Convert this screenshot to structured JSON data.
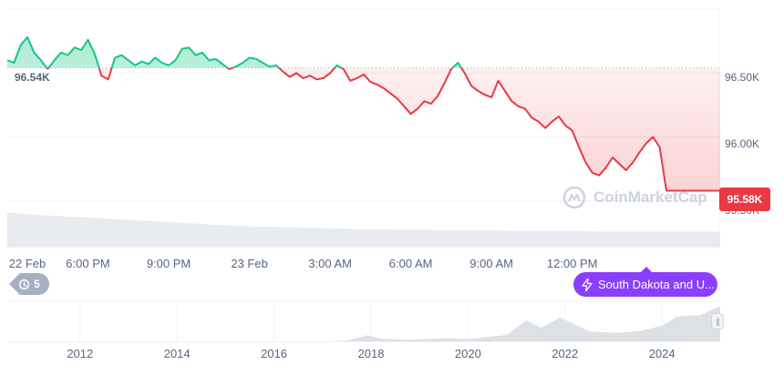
{
  "chart_data": [
    {
      "type": "area",
      "baseline": 96.54,
      "baseline_label": "96.54K",
      "last_value_label": "95.58K",
      "y_ticks": [
        {
          "value": 96.5,
          "label": "96.50K"
        },
        {
          "value": 96.0,
          "label": "96.00K"
        },
        {
          "value": 95.5,
          "label": "95.50K"
        }
      ],
      "ylim": [
        95.42,
        97.0
      ],
      "xlim": [
        0,
        26.5
      ],
      "x_ticks": [
        {
          "value": 0,
          "label": "22 Feb"
        },
        {
          "value": 3,
          "label": "6:00 PM"
        },
        {
          "value": 6,
          "label": "9:00 PM"
        },
        {
          "value": 9,
          "label": "23 Feb"
        },
        {
          "value": 12,
          "label": "3:00 AM"
        },
        {
          "value": 15,
          "label": "6:00 AM"
        },
        {
          "value": 18,
          "label": "9:00 AM"
        },
        {
          "value": 21,
          "label": "12:00 PM"
        }
      ],
      "up_color": "#16c784",
      "down_color": "#ea3943",
      "series": [
        {
          "x": [
            0,
            0.25,
            0.5,
            0.75,
            1.0,
            1.25,
            1.5,
            1.75,
            2.0,
            2.25,
            2.5,
            2.75,
            3.0,
            3.25,
            3.5,
            3.75,
            4.0,
            4.25,
            4.5,
            4.75,
            5.0,
            5.25,
            5.5,
            5.75,
            6.0,
            6.25,
            6.5,
            6.75,
            7.0,
            7.25,
            7.5,
            7.75,
            8.0,
            8.25,
            8.5,
            8.75,
            9.0,
            9.25,
            9.5,
            9.75,
            10.0,
            10.25,
            10.5,
            10.75,
            11.0,
            11.25,
            11.5,
            11.75,
            12.0,
            12.25,
            12.5,
            12.75,
            13.0,
            13.25,
            13.5,
            13.75,
            14.0,
            14.25,
            14.5,
            14.75,
            15.0,
            15.25,
            15.5,
            15.75,
            16.0,
            16.25,
            16.5,
            16.75,
            17.0,
            17.25,
            17.5,
            17.75,
            18.0,
            18.25,
            18.5,
            18.75,
            19.0,
            19.25,
            19.5,
            19.75,
            20.0,
            20.25,
            20.5,
            20.75,
            21.0,
            21.25,
            21.5,
            21.75,
            22.0,
            22.25,
            22.5,
            22.75,
            23.0,
            23.25,
            23.5,
            23.75,
            24.0,
            24.25,
            24.5,
            24.75,
            25.0,
            25.25,
            25.5,
            25.75,
            26.0,
            26.25,
            26.5
          ],
          "values": [
            96.6,
            96.58,
            96.72,
            96.78,
            96.66,
            96.6,
            96.53,
            96.6,
            96.66,
            96.64,
            96.7,
            96.68,
            96.76,
            96.65,
            96.48,
            96.45,
            96.62,
            96.64,
            96.6,
            96.56,
            96.59,
            96.57,
            96.62,
            96.58,
            96.56,
            96.6,
            96.69,
            96.7,
            96.64,
            96.66,
            96.6,
            96.61,
            96.57,
            96.53,
            96.55,
            96.58,
            96.62,
            96.61,
            96.58,
            96.55,
            96.56,
            96.51,
            96.47,
            96.5,
            96.46,
            96.48,
            96.45,
            96.46,
            96.5,
            96.56,
            96.53,
            96.44,
            96.46,
            96.49,
            96.43,
            96.41,
            96.38,
            96.34,
            96.3,
            96.24,
            96.18,
            96.22,
            96.28,
            96.26,
            96.32,
            96.42,
            96.53,
            96.58,
            96.5,
            96.4,
            96.36,
            96.33,
            96.31,
            96.44,
            96.36,
            96.28,
            96.24,
            96.22,
            96.15,
            96.12,
            96.07,
            96.12,
            96.16,
            96.09,
            96.05,
            95.92,
            95.8,
            95.72,
            95.7,
            95.76,
            95.84,
            95.79,
            95.74,
            95.8,
            95.88,
            95.95,
            96.0,
            95.92,
            95.58,
            95.58,
            95.58,
            95.58,
            95.58,
            95.58,
            95.58,
            95.58,
            95.58
          ]
        }
      ],
      "volume": [
        0.55,
        0.52,
        0.5,
        0.48,
        0.46,
        0.44,
        0.42,
        0.4,
        0.38,
        0.36,
        0.34,
        0.33,
        0.32,
        0.31,
        0.3,
        0.29,
        0.29,
        0.28,
        0.28,
        0.27,
        0.27,
        0.27,
        0.26,
        0.26,
        0.26,
        0.26,
        0.25,
        0.25,
        0.25,
        0.25,
        0.25,
        0.25
      ]
    },
    {
      "type": "area",
      "x_ticks": [
        {
          "value": 2012,
          "label": "2012"
        },
        {
          "value": 2014,
          "label": "2014"
        },
        {
          "value": 2016,
          "label": "2016"
        },
        {
          "value": 2018,
          "label": "2018"
        },
        {
          "value": 2020,
          "label": "2020"
        },
        {
          "value": 2022,
          "label": "2022"
        },
        {
          "value": 2024,
          "label": "2024"
        }
      ],
      "xlim": [
        2010.5,
        2025.2
      ],
      "series": [
        {
          "x": [
            2010.5,
            2012,
            2013,
            2014,
            2015,
            2016,
            2017,
            2017.5,
            2017.9,
            2018.2,
            2018.8,
            2019.5,
            2020.0,
            2020.8,
            2021.2,
            2021.5,
            2021.9,
            2022.5,
            2023.0,
            2023.5,
            2024.0,
            2024.3,
            2024.8,
            2025.2
          ],
          "values": [
            0,
            0,
            0.01,
            0.01,
            0.01,
            0.01,
            0.02,
            0.05,
            0.19,
            0.1,
            0.07,
            0.11,
            0.09,
            0.2,
            0.6,
            0.4,
            0.68,
            0.3,
            0.26,
            0.3,
            0.45,
            0.7,
            0.75,
            1.0
          ]
        }
      ]
    }
  ],
  "controls": {
    "history_count": "5",
    "event_label": "South Dakota and U...",
    "pause_icon": "pause-icon",
    "history_icon": "history-icon",
    "event_icon": "lightning-icon"
  },
  "watermark": {
    "text": "CoinMarketCap"
  }
}
